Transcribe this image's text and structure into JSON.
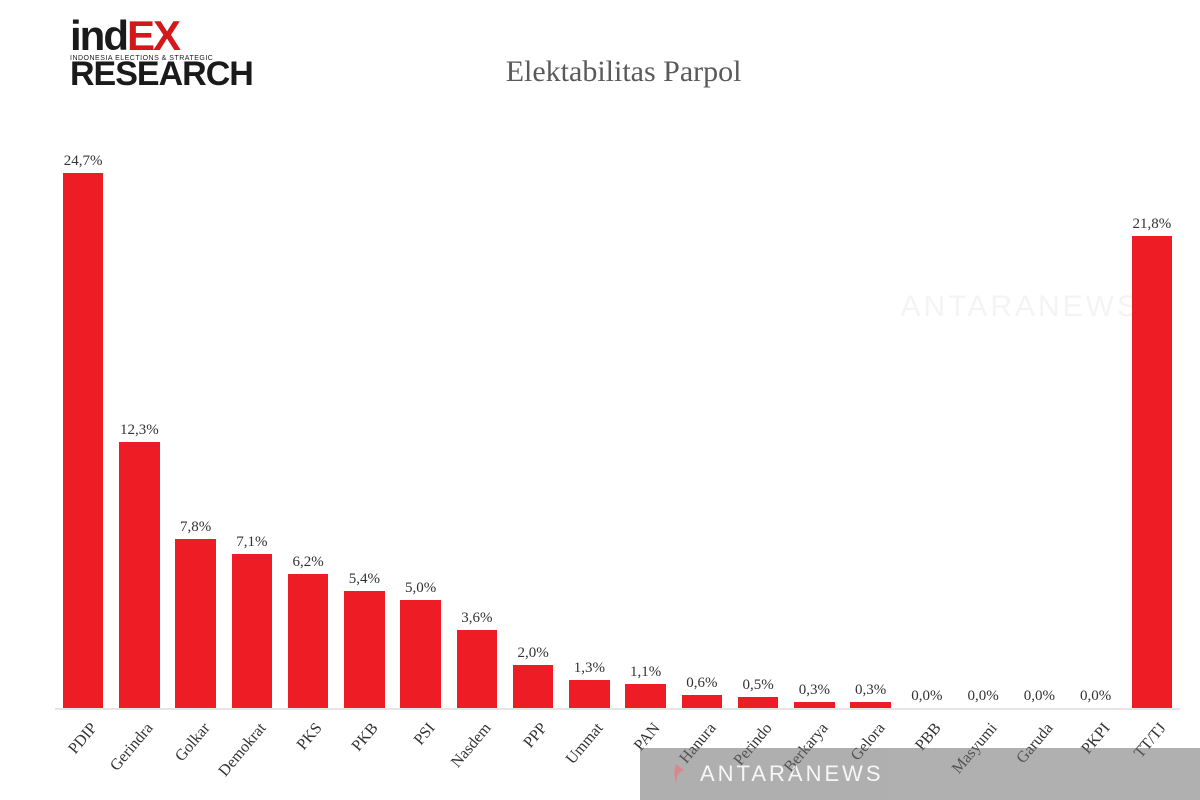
{
  "logo": {
    "line1_prefix": "ind",
    "line1_suffix": "EX",
    "subline": "INDONESIA ELECTIONS & STRATEGIC",
    "line2": "RESEARCH"
  },
  "chart": {
    "title": "Elektabilitas Parpol",
    "type": "bar",
    "y_max": 26.0,
    "bar_color": "#ee1c25",
    "bar_width_ratio": 0.72,
    "background_color": "#ffffff",
    "axis_color": "#e5e5e5",
    "title_fontsize": 30,
    "title_color": "#5a5a5a",
    "label_fontsize": 15,
    "xlabel_fontsize": 16,
    "xlabel_rotation_deg": -50,
    "text_color": "#333333",
    "categories": [
      "PDIP",
      "Gerindra",
      "Golkar",
      "Demokrat",
      "PKS",
      "PKB",
      "PSI",
      "Nasdem",
      "PPP",
      "Ummat",
      "PAN",
      "Hanura",
      "Perindo",
      "Berkarya",
      "Gelora",
      "PBB",
      "Masyumi",
      "Garuda",
      "PKPI",
      "TT/TJ"
    ],
    "values": [
      24.7,
      12.3,
      7.8,
      7.1,
      6.2,
      5.4,
      5.0,
      3.6,
      2.0,
      1.3,
      1.1,
      0.6,
      0.5,
      0.3,
      0.3,
      0.0,
      0.0,
      0.0,
      0.0,
      21.8
    ],
    "value_labels": [
      "24,7%",
      "12,3%",
      "7,8%",
      "7,1%",
      "6,2%",
      "5,4%",
      "5,0%",
      "3,6%",
      "2,0%",
      "1,3%",
      "1,1%",
      "0,6%",
      "0,5%",
      "0,3%",
      "0,3%",
      "0,0%",
      "0,0%",
      "0,0%",
      "0,0%",
      "21,8%"
    ]
  },
  "watermark": {
    "text": "ANTARANEWS",
    "bar_text": "ANTARANEWS",
    "icon_color": "#c0252b",
    "bar_bg": "#6f6f6f",
    "bar_opacity": 0.55
  }
}
